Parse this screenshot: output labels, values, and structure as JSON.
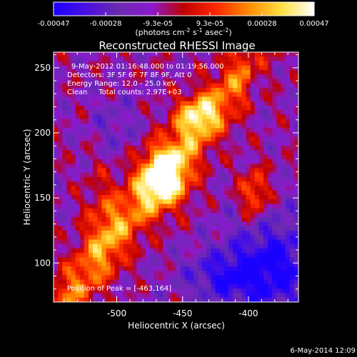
{
  "chart_data": {
    "type": "heatmap",
    "title": "Reconstructed RHESSI Image",
    "xlabel": "Heliocentric X (arcsec)",
    "ylabel": "Heliocentric Y (arcsec)",
    "xlim": [
      -548,
      -362
    ],
    "ylim": [
      70,
      262
    ],
    "x_ticks": [
      -500,
      -450,
      -400
    ],
    "y_ticks": [
      100,
      150,
      200,
      250
    ],
    "colorbar": {
      "ticks": [
        "-0.00047",
        "-0.00028",
        "-9.3e-05",
        "9.3e-05",
        "0.00028",
        "0.00047"
      ],
      "units_prefix": "(photons cm",
      "units_sup1": "-2",
      "units_mid1": " s",
      "units_sup2": "-1",
      "units_mid2": " asec",
      "units_sup3": "-2",
      "units_suffix": ")",
      "colors": [
        "#1a00ff",
        "#4a10e0",
        "#6a2ab0",
        "#8a1ad0",
        "#c00000",
        "#ff2800",
        "#ff8c00",
        "#ffe040",
        "#ffffff"
      ]
    },
    "annotations": {
      "time_range": "9-May-2012 01:16:48.000 to 01:19:56.000",
      "detectors": "Detectors: 3F 5F 6F 7F 8F 9F, Att 0",
      "energy": "Energy Range: 12.0 - 25.0 keV",
      "clean": "Clean     Total counts: 2.97E+03",
      "peak": "Position of Peak = [-463,164]"
    },
    "peak": [
      -463,
      164
    ],
    "footer_date": "6-May-2014 12:09"
  }
}
